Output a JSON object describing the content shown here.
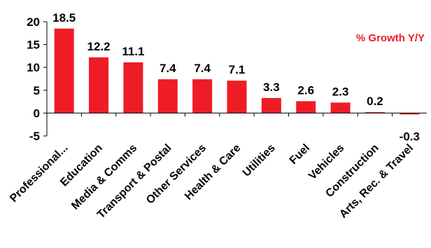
{
  "chart_data": {
    "type": "bar",
    "legend_label": "% Growth Y/Y",
    "legend_position": "top-right",
    "categories": [
      "Professional...",
      "Education",
      "Media & Comms",
      "Transport & Postal",
      "Other Services",
      "Health & Care",
      "Utilities",
      "Fuel",
      "Vehicles",
      "Construction",
      "Arts, Rec. & Travel"
    ],
    "values": [
      18.5,
      12.2,
      11.1,
      7.4,
      7.4,
      7.1,
      3.3,
      2.6,
      2.3,
      0.2,
      -0.3
    ],
    "value_labels": [
      "18.5",
      "12.2",
      "11.1",
      "7.4",
      "7.4",
      "7.1",
      "3.3",
      "2.6",
      "2.3",
      "0.2",
      "-0.3"
    ],
    "ylim": [
      -5,
      20
    ],
    "y_ticks": [
      20,
      15,
      10,
      5,
      0,
      -5
    ],
    "y_tick_labels": [
      "20",
      "15",
      "10",
      "5",
      "0",
      "-5"
    ],
    "grid": false,
    "colors": {
      "bar": "#ee1c25",
      "legend_text": "#ee1c25",
      "axis": "#000000"
    }
  }
}
